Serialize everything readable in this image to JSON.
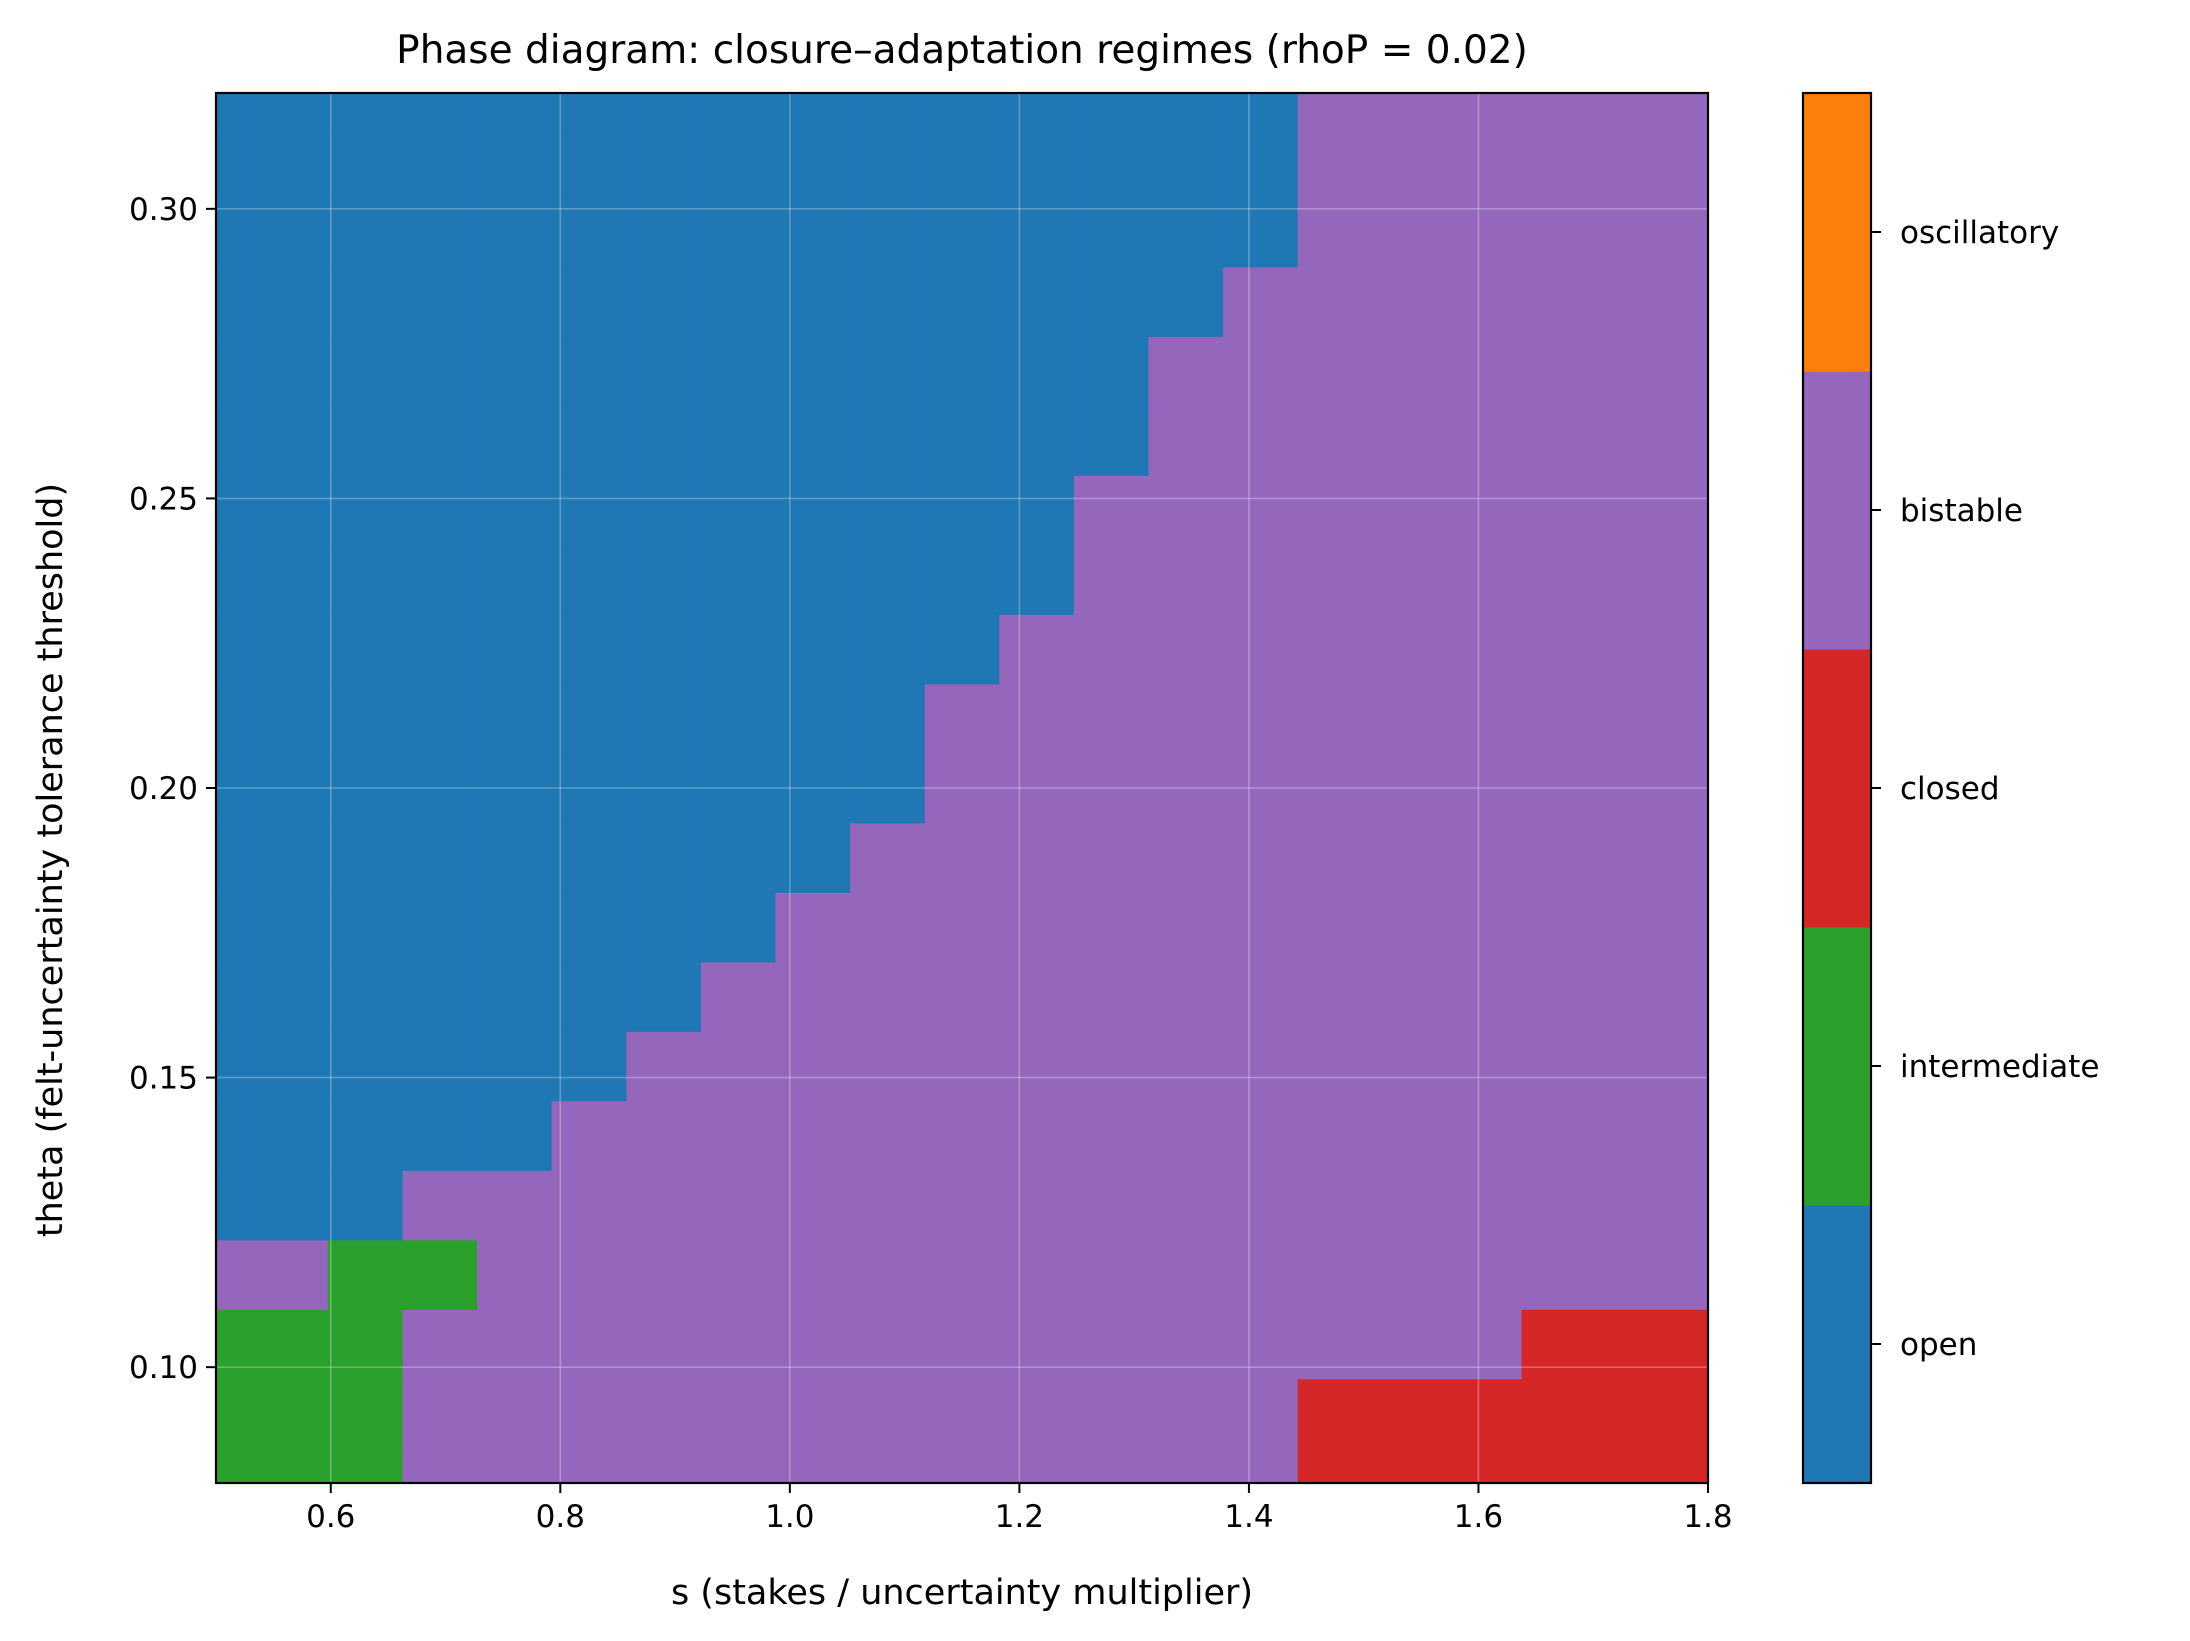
{
  "chart_data": {
    "type": "heatmap",
    "title": "Phase diagram: closure–adaptation regimes (rhoP = 0.02)",
    "xlabel": "s (stakes / uncertainty multiplier)",
    "ylabel": "theta (felt-uncertainty tolerance threshold)",
    "xlim": [
      0.5,
      1.8
    ],
    "ylim": [
      0.08,
      0.32
    ],
    "x_ticks": [
      "0.6",
      "0.8",
      "1.0",
      "1.2",
      "1.4",
      "1.6",
      "1.8"
    ],
    "x_tick_values": [
      0.6,
      0.8,
      1.0,
      1.2,
      1.4,
      1.6,
      1.8
    ],
    "y_ticks": [
      "0.10",
      "0.15",
      "0.20",
      "0.25",
      "0.30"
    ],
    "y_tick_values": [
      0.1,
      0.15,
      0.2,
      0.25,
      0.3
    ],
    "grid": true,
    "x_centers": [
      0.5,
      0.565,
      0.63,
      0.695,
      0.76,
      0.825,
      0.89,
      0.955,
      1.02,
      1.085,
      1.15,
      1.215,
      1.28,
      1.345,
      1.41,
      1.475,
      1.54,
      1.605,
      1.67,
      1.735,
      1.8
    ],
    "y_centers": [
      0.08,
      0.092,
      0.104,
      0.116,
      0.128,
      0.14,
      0.152,
      0.164,
      0.176,
      0.188,
      0.2,
      0.212,
      0.224,
      0.236,
      0.248,
      0.26,
      0.272,
      0.284,
      0.296,
      0.308,
      0.32
    ],
    "regime_codes": [
      [
        1,
        1,
        1,
        3,
        3,
        3,
        3,
        3,
        3,
        3,
        3,
        3,
        3,
        3,
        3,
        2,
        2,
        2,
        2,
        2,
        2
      ],
      [
        1,
        1,
        1,
        3,
        3,
        3,
        3,
        3,
        3,
        3,
        3,
        3,
        3,
        3,
        3,
        2,
        2,
        2,
        2,
        2,
        2
      ],
      [
        1,
        1,
        1,
        3,
        3,
        3,
        3,
        3,
        3,
        3,
        3,
        3,
        3,
        3,
        3,
        3,
        3,
        3,
        2,
        2,
        2
      ],
      [
        3,
        3,
        1,
        1,
        3,
        3,
        3,
        3,
        3,
        3,
        3,
        3,
        3,
        3,
        3,
        3,
        3,
        3,
        3,
        3,
        3
      ],
      [
        0,
        0,
        0,
        3,
        3,
        3,
        3,
        3,
        3,
        3,
        3,
        3,
        3,
        3,
        3,
        3,
        3,
        3,
        3,
        3,
        3
      ],
      [
        0,
        0,
        0,
        0,
        0,
        3,
        3,
        3,
        3,
        3,
        3,
        3,
        3,
        3,
        3,
        3,
        3,
        3,
        3,
        3,
        3
      ],
      [
        0,
        0,
        0,
        0,
        0,
        0,
        3,
        3,
        3,
        3,
        3,
        3,
        3,
        3,
        3,
        3,
        3,
        3,
        3,
        3,
        3
      ],
      [
        0,
        0,
        0,
        0,
        0,
        0,
        0,
        3,
        3,
        3,
        3,
        3,
        3,
        3,
        3,
        3,
        3,
        3,
        3,
        3,
        3
      ],
      [
        0,
        0,
        0,
        0,
        0,
        0,
        0,
        0,
        3,
        3,
        3,
        3,
        3,
        3,
        3,
        3,
        3,
        3,
        3,
        3,
        3
      ],
      [
        0,
        0,
        0,
        0,
        0,
        0,
        0,
        0,
        0,
        3,
        3,
        3,
        3,
        3,
        3,
        3,
        3,
        3,
        3,
        3,
        3
      ],
      [
        0,
        0,
        0,
        0,
        0,
        0,
        0,
        0,
        0,
        0,
        3,
        3,
        3,
        3,
        3,
        3,
        3,
        3,
        3,
        3,
        3
      ],
      [
        0,
        0,
        0,
        0,
        0,
        0,
        0,
        0,
        0,
        0,
        3,
        3,
        3,
        3,
        3,
        3,
        3,
        3,
        3,
        3,
        3
      ],
      [
        0,
        0,
        0,
        0,
        0,
        0,
        0,
        0,
        0,
        0,
        0,
        3,
        3,
        3,
        3,
        3,
        3,
        3,
        3,
        3,
        3
      ],
      [
        0,
        0,
        0,
        0,
        0,
        0,
        0,
        0,
        0,
        0,
        0,
        0,
        3,
        3,
        3,
        3,
        3,
        3,
        3,
        3,
        3
      ],
      [
        0,
        0,
        0,
        0,
        0,
        0,
        0,
        0,
        0,
        0,
        0,
        0,
        3,
        3,
        3,
        3,
        3,
        3,
        3,
        3,
        3
      ],
      [
        0,
        0,
        0,
        0,
        0,
        0,
        0,
        0,
        0,
        0,
        0,
        0,
        0,
        3,
        3,
        3,
        3,
        3,
        3,
        3,
        3
      ],
      [
        0,
        0,
        0,
        0,
        0,
        0,
        0,
        0,
        0,
        0,
        0,
        0,
        0,
        3,
        3,
        3,
        3,
        3,
        3,
        3,
        3
      ],
      [
        0,
        0,
        0,
        0,
        0,
        0,
        0,
        0,
        0,
        0,
        0,
        0,
        0,
        0,
        3,
        3,
        3,
        3,
        3,
        3,
        3
      ],
      [
        0,
        0,
        0,
        0,
        0,
        0,
        0,
        0,
        0,
        0,
        0,
        0,
        0,
        0,
        0,
        3,
        3,
        3,
        3,
        3,
        3
      ],
      [
        0,
        0,
        0,
        0,
        0,
        0,
        0,
        0,
        0,
        0,
        0,
        0,
        0,
        0,
        0,
        3,
        3,
        3,
        3,
        3,
        3
      ],
      [
        0,
        0,
        0,
        0,
        0,
        0,
        0,
        0,
        0,
        0,
        0,
        0,
        0,
        0,
        0,
        3,
        3,
        3,
        3,
        3,
        3
      ]
    ],
    "regimes": [
      {
        "code": 0,
        "label": "open",
        "color": "#1f77b4"
      },
      {
        "code": 1,
        "label": "intermediate",
        "color": "#2ca02c"
      },
      {
        "code": 2,
        "label": "closed",
        "color": "#d62728"
      },
      {
        "code": 3,
        "label": "bistable",
        "color": "#9467bd"
      },
      {
        "code": 4,
        "label": "oscillatory",
        "color": "#ff7f0e"
      }
    ],
    "colorbar_order": [
      "open",
      "intermediate",
      "closed",
      "bistable",
      "oscillatory"
    ]
  }
}
